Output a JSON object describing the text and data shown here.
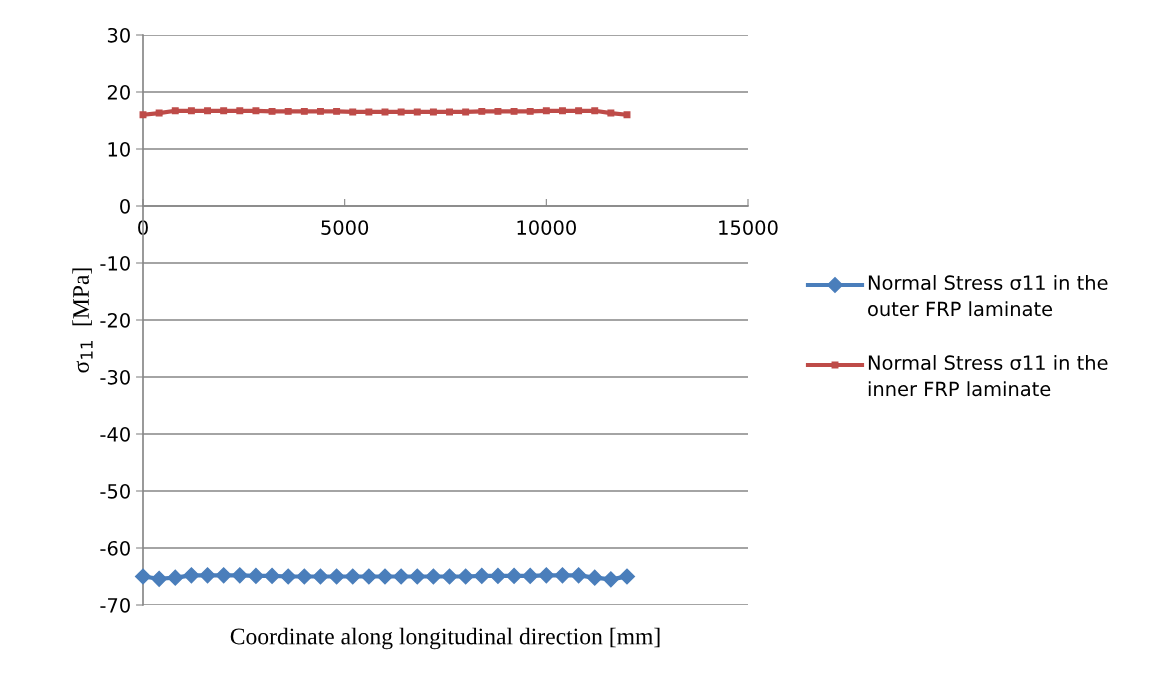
{
  "chart_data": {
    "type": "line",
    "xlabel": "Coordinate along longitudinal direction [mm]",
    "ylabel": "σ$_{11}$  [MPa]",
    "x": [
      0,
      400,
      800,
      1200,
      1600,
      2000,
      2400,
      2800,
      3200,
      3600,
      4000,
      4400,
      4800,
      5200,
      5600,
      6000,
      6400,
      6800,
      7200,
      7600,
      8000,
      8400,
      8800,
      9200,
      9600,
      10000,
      10400,
      10800,
      11200,
      11600,
      12000
    ],
    "series": [
      {
        "name": "Normal Stress σ11 in the outer FRP laminate",
        "color": "#4a7ebb",
        "marker": "diamond",
        "values": [
          -65,
          -65.4,
          -65.2,
          -64.8,
          -64.8,
          -64.8,
          -64.8,
          -64.9,
          -64.9,
          -65,
          -65,
          -65,
          -65,
          -65,
          -65,
          -65,
          -65,
          -65,
          -65,
          -65,
          -65,
          -64.9,
          -64.9,
          -64.9,
          -64.9,
          -64.8,
          -64.8,
          -64.8,
          -65.2,
          -65.5,
          -65
        ]
      },
      {
        "name": "Normal Stress σ11 in the inner FRP laminate",
        "color": "#be4b48",
        "marker": "square",
        "values": [
          16,
          16.3,
          16.7,
          16.7,
          16.7,
          16.7,
          16.7,
          16.7,
          16.6,
          16.6,
          16.6,
          16.6,
          16.6,
          16.5,
          16.5,
          16.5,
          16.5,
          16.5,
          16.5,
          16.5,
          16.5,
          16.6,
          16.6,
          16.6,
          16.6,
          16.7,
          16.7,
          16.7,
          16.7,
          16.3,
          16
        ]
      }
    ],
    "xlim": [
      0,
      15000
    ],
    "xticks": [
      0,
      5000,
      10000,
      15000
    ],
    "ylim": [
      -70,
      30
    ],
    "yticks": [
      -70,
      -60,
      -50,
      -40,
      -30,
      -20,
      -10,
      0,
      10,
      20,
      30
    ],
    "grid": "y",
    "legend": "right"
  }
}
